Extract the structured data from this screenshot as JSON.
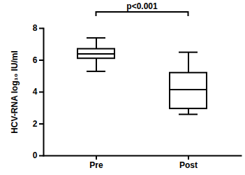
{
  "chart_data": {
    "type": "box",
    "categories": [
      "Pre",
      "Post"
    ],
    "values": [
      {
        "min": 5.3,
        "q1": 6.1,
        "median": 6.4,
        "q3": 6.7,
        "max": 7.4
      },
      {
        "min": 2.6,
        "q1": 2.95,
        "median": 4.15,
        "q3": 5.2,
        "max": 6.5
      }
    ],
    "y_label": "HCV-RNA log₁₀ IU/ml",
    "ylim": [
      0,
      8
    ],
    "yticks": [
      0,
      2,
      4,
      6,
      8
    ],
    "grid": false,
    "color": "#000000",
    "annotations": [
      {
        "text": "p<0.001",
        "from": "Pre",
        "to": "Post"
      }
    ]
  }
}
